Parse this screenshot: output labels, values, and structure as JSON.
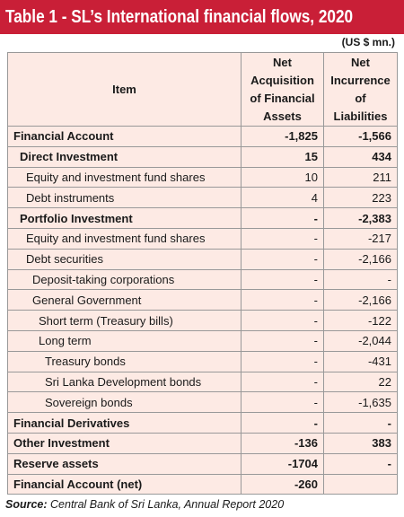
{
  "header": {
    "title": "Table 1 - SL’s International financial flows, 2020",
    "unit": "(US $ mn.)"
  },
  "table": {
    "columns": [
      "Item",
      "Net Acquisition of Financial Assets",
      "Net Incurrence of Liabilities"
    ],
    "rows": [
      {
        "label": "Financial Account",
        "level": 0,
        "bold": true,
        "values": [
          "-1,825",
          "-1,566"
        ]
      },
      {
        "label": "Direct Investment",
        "level": 1,
        "bold": true,
        "values": [
          "15",
          "434"
        ]
      },
      {
        "label": "Equity and investment fund shares",
        "level": 2,
        "bold": false,
        "values": [
          "10",
          "211"
        ]
      },
      {
        "label": "Debt instruments",
        "level": 2,
        "bold": false,
        "values": [
          "4",
          "223"
        ]
      },
      {
        "label": "Portfolio Investment",
        "level": 1,
        "bold": true,
        "values": [
          "-",
          "-2,383"
        ]
      },
      {
        "label": "Equity and investment fund shares",
        "level": 2,
        "bold": false,
        "values": [
          "-",
          "-217"
        ]
      },
      {
        "label": "Debt securities",
        "level": 2,
        "bold": false,
        "values": [
          "-",
          "-2,166"
        ]
      },
      {
        "label": "Deposit-taking corporations",
        "level": 3,
        "bold": false,
        "values": [
          "-",
          "-"
        ]
      },
      {
        "label": "General Government",
        "level": 3,
        "bold": false,
        "values": [
          "-",
          "-2,166"
        ]
      },
      {
        "label": "Short term (Treasury bills)",
        "level": 4,
        "bold": false,
        "values": [
          "-",
          "-122"
        ]
      },
      {
        "label": "Long term",
        "level": 4,
        "bold": false,
        "values": [
          "-",
          "-2,044"
        ]
      },
      {
        "label": "Treasury bonds",
        "level": 5,
        "bold": false,
        "values": [
          "-",
          "-431"
        ]
      },
      {
        "label": "Sri Lanka Development bonds",
        "level": 5,
        "bold": false,
        "values": [
          "-",
          "22"
        ]
      },
      {
        "label": "Sovereign bonds",
        "level": 5,
        "bold": false,
        "values": [
          "-",
          "-1,635"
        ]
      },
      {
        "label": "Financial Derivatives",
        "level": 0,
        "bold": true,
        "values": [
          "-",
          "-"
        ]
      },
      {
        "label": "Other Investment",
        "level": 0,
        "bold": true,
        "values": [
          "-136",
          "383"
        ]
      },
      {
        "label": "Reserve assets",
        "level": 0,
        "bold": true,
        "values": [
          "-1704",
          "-"
        ]
      },
      {
        "label": "Financial Account (net)",
        "level": 0,
        "bold": true,
        "values": [
          "-260",
          null
        ]
      }
    ]
  },
  "source": {
    "label": "Source:",
    "text": "Central Bank of Sri Lanka, Annual Report 2020"
  }
}
